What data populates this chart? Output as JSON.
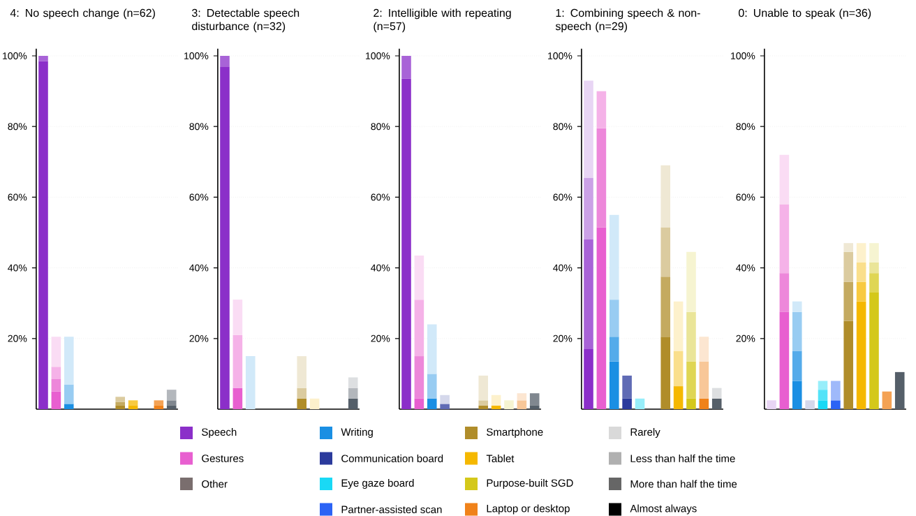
{
  "chart_data": [
    {
      "type": "bar",
      "stacked": true,
      "grid": "y",
      "title": "4: No speech change (n=62)",
      "categories": [
        null,
        null,
        null,
        null,
        null,
        null,
        null,
        null,
        null,
        null,
        null
      ],
      "ylim": [
        0,
        102
      ],
      "yticks": [
        {
          "value": 20,
          "label": "20%"
        },
        {
          "value": 40,
          "label": "40%"
        },
        {
          "value": 60,
          "label": "60%"
        },
        {
          "value": 80,
          "label": "80%"
        },
        {
          "value": 100,
          "label": "100%"
        }
      ],
      "series": [
        {
          "colors": [
            "#8b2fc9",
            "#e85fd0",
            "#1a8fe3",
            "#2b3a9c",
            "#19d9f5",
            "#2b63f5",
            "#b08d2a",
            "#f5b800",
            "#d4c81a",
            "#f0821a",
            "#555f69"
          ],
          "values": [
            98.5,
            5,
            1.5,
            0,
            0,
            0,
            1,
            1,
            0,
            1,
            1
          ]
        },
        {
          "colors": [
            "#a863d7",
            "#ed87da",
            "#54abea",
            "#606bb5",
            "#53e3f8",
            "#608af8",
            "#c4aa60",
            "#f8ca40",
            "#dfd654",
            "#f4a254",
            "#80878f"
          ],
          "values": [
            1.5,
            3.5,
            0,
            0,
            0,
            0,
            1,
            1.5,
            0,
            1.5,
            1.5
          ]
        },
        {
          "colors": [
            "#cba1e6",
            "#f5b2e8",
            "#98ccf2",
            "#9fa6d2",
            "#97eefa",
            "#9fb9fa",
            "#dbcb9f",
            "#fadf8c",
            "#eae598",
            "#f8c798",
            "#b3b7bc"
          ],
          "values": [
            0,
            3.5,
            5.5,
            0,
            0,
            0,
            1.5,
            0,
            0,
            0,
            3
          ]
        },
        {
          "colors": [
            "#e8d5f4",
            "#fadcf4",
            "#d1e9f9",
            "#d5d8eb",
            "#d1f7fd",
            "#d5e0fd",
            "#efe8d4",
            "#fdf1cc",
            "#f6f4d1",
            "#fce6d1",
            "#dddfe1"
          ],
          "values": [
            0,
            8.5,
            13.5,
            0,
            0,
            0,
            0,
            0,
            0,
            0,
            0
          ]
        }
      ]
    },
    {
      "type": "bar",
      "stacked": true,
      "grid": "y",
      "title": "3: Detectable speech disturbance (n=32)",
      "categories": [
        null,
        null,
        null,
        null,
        null,
        null,
        null,
        null,
        null,
        null,
        null
      ],
      "ylim": [
        0,
        102
      ],
      "yticks": [
        {
          "value": 20,
          "label": "20%"
        },
        {
          "value": 40,
          "label": "40%"
        },
        {
          "value": 60,
          "label": "60%"
        },
        {
          "value": 80,
          "label": "80%"
        },
        {
          "value": 100,
          "label": "100%"
        }
      ],
      "series": [
        {
          "colors": [
            "#8b2fc9",
            "#e85fd0",
            "#1a8fe3",
            "#2b3a9c",
            "#19d9f5",
            "#2b63f5",
            "#b08d2a",
            "#f5b800",
            "#d4c81a",
            "#f0821a",
            "#555f69"
          ],
          "values": [
            97,
            6,
            0,
            0,
            0,
            0,
            3,
            0,
            0,
            0,
            3
          ]
        },
        {
          "colors": [
            "#a863d7",
            "#ed87da",
            "#54abea",
            "#606bb5",
            "#53e3f8",
            "#608af8",
            "#c4aa60",
            "#f8ca40",
            "#dfd654",
            "#f4a254",
            "#80878f"
          ],
          "values": [
            3,
            0,
            0,
            0,
            0,
            0,
            0,
            0,
            0,
            0,
            0
          ]
        },
        {
          "colors": [
            "#cba1e6",
            "#f5b2e8",
            "#98ccf2",
            "#9fa6d2",
            "#97eefa",
            "#9fb9fa",
            "#dbcb9f",
            "#fadf8c",
            "#eae598",
            "#f8c798",
            "#b3b7bc"
          ],
          "values": [
            0,
            15,
            0,
            0,
            0,
            0,
            3,
            0,
            0,
            0,
            3
          ]
        },
        {
          "colors": [
            "#e8d5f4",
            "#fadcf4",
            "#d1e9f9",
            "#d5d8eb",
            "#d1f7fd",
            "#d5e0fd",
            "#efe8d4",
            "#fdf1cc",
            "#f6f4d1",
            "#fce6d1",
            "#dddfe1"
          ],
          "values": [
            0,
            10,
            15,
            0,
            0,
            0,
            9,
            3,
            0,
            0,
            3
          ]
        }
      ]
    },
    {
      "type": "bar",
      "stacked": true,
      "grid": "y",
      "title": "2: Intelligible with repeating (n=57)",
      "categories": [
        null,
        null,
        null,
        null,
        null,
        null,
        null,
        null,
        null,
        null,
        null
      ],
      "ylim": [
        0,
        102
      ],
      "yticks": [
        {
          "value": 20,
          "label": "20%"
        },
        {
          "value": 40,
          "label": "40%"
        },
        {
          "value": 60,
          "label": "60%"
        },
        {
          "value": 80,
          "label": "80%"
        },
        {
          "value": 100,
          "label": "100%"
        }
      ],
      "series": [
        {
          "colors": [
            "#8b2fc9",
            "#e85fd0",
            "#1a8fe3",
            "#2b3a9c",
            "#19d9f5",
            "#2b63f5",
            "#b08d2a",
            "#f5b800",
            "#d4c81a",
            "#f0821a",
            "#555f69"
          ],
          "values": [
            93.5,
            3,
            3,
            0,
            0,
            0,
            1,
            1,
            0,
            0,
            1
          ]
        },
        {
          "colors": [
            "#a863d7",
            "#ed87da",
            "#54abea",
            "#606bb5",
            "#53e3f8",
            "#608af8",
            "#c4aa60",
            "#f8ca40",
            "#dfd654",
            "#f4a254",
            "#80878f"
          ],
          "values": [
            6.5,
            12,
            0,
            1.5,
            0,
            0,
            0,
            0,
            0,
            0,
            3.5
          ]
        },
        {
          "colors": [
            "#cba1e6",
            "#f5b2e8",
            "#98ccf2",
            "#9fa6d2",
            "#97eefa",
            "#9fb9fa",
            "#dbcb9f",
            "#fadf8c",
            "#eae598",
            "#f8c798",
            "#b3b7bc"
          ],
          "values": [
            0,
            16,
            7,
            0,
            0,
            0,
            1.5,
            0,
            0,
            2.5,
            0
          ]
        },
        {
          "colors": [
            "#e8d5f4",
            "#fadcf4",
            "#d1e9f9",
            "#d5d8eb",
            "#d1f7fd",
            "#d5e0fd",
            "#efe8d4",
            "#fdf1cc",
            "#f6f4d1",
            "#fce6d1",
            "#dddfe1"
          ],
          "values": [
            0,
            12.5,
            14,
            2.5,
            0,
            0,
            7,
            3,
            2.5,
            2,
            0
          ]
        }
      ]
    },
    {
      "type": "bar",
      "stacked": true,
      "grid": "y",
      "title": "1: Combining speech & non-speech (n=29)",
      "categories": [
        null,
        null,
        null,
        null,
        null,
        null,
        null,
        null,
        null,
        null,
        null
      ],
      "ylim": [
        0,
        102
      ],
      "yticks": [
        {
          "value": 20,
          "label": "20%"
        },
        {
          "value": 40,
          "label": "40%"
        },
        {
          "value": 60,
          "label": "60%"
        },
        {
          "value": 80,
          "label": "80%"
        },
        {
          "value": 100,
          "label": "100%"
        }
      ],
      "series": [
        {
          "colors": [
            "#8b2fc9",
            "#e85fd0",
            "#1a8fe3",
            "#2b3a9c",
            "#19d9f5",
            "#2b63f5",
            "#b08d2a",
            "#f5b800",
            "#d4c81a",
            "#f0821a",
            "#555f69"
          ],
          "values": [
            17,
            51.5,
            13.5,
            3,
            0,
            0,
            20.5,
            6.5,
            3,
            3,
            3
          ]
        },
        {
          "colors": [
            "#a863d7",
            "#ed87da",
            "#54abea",
            "#606bb5",
            "#53e3f8",
            "#608af8",
            "#c4aa60",
            "#f8ca40",
            "#dfd654",
            "#f4a254",
            "#80878f"
          ],
          "values": [
            31,
            28,
            7,
            6.5,
            0,
            0,
            17,
            0,
            10.5,
            0,
            0
          ]
        },
        {
          "colors": [
            "#cba1e6",
            "#f5b2e8",
            "#98ccf2",
            "#9fa6d2",
            "#97eefa",
            "#9fb9fa",
            "#dbcb9f",
            "#fadf8c",
            "#eae598",
            "#f8c798",
            "#b3b7bc"
          ],
          "values": [
            17.5,
            10.5,
            10.5,
            0,
            3,
            0,
            14,
            10,
            14,
            10.5,
            0
          ]
        },
        {
          "colors": [
            "#e8d5f4",
            "#fadcf4",
            "#d1e9f9",
            "#d5d8eb",
            "#d1f7fd",
            "#d5e0fd",
            "#efe8d4",
            "#fdf1cc",
            "#f6f4d1",
            "#fce6d1",
            "#dddfe1"
          ],
          "values": [
            27.5,
            0,
            24,
            0,
            0,
            0,
            17.5,
            14,
            17,
            7,
            3
          ]
        }
      ]
    },
    {
      "type": "bar",
      "stacked": true,
      "grid": "y",
      "title": "0: Unable to speak (n=36)",
      "categories": [
        null,
        null,
        null,
        null,
        null,
        null,
        null,
        null,
        null,
        null,
        null
      ],
      "ylim": [
        0,
        102
      ],
      "yticks": [
        {
          "value": 20,
          "label": "20%"
        },
        {
          "value": 40,
          "label": "40%"
        },
        {
          "value": 60,
          "label": "60%"
        },
        {
          "value": 80,
          "label": "80%"
        },
        {
          "value": 100,
          "label": "100%"
        }
      ],
      "series": [
        {
          "colors": [
            "#8b2fc9",
            "#e85fd0",
            "#1a8fe3",
            "#2b3a9c",
            "#19d9f5",
            "#2b63f5",
            "#b08d2a",
            "#f5b800",
            "#d4c81a",
            "#f0821a",
            "#555f69"
          ],
          "values": [
            0,
            27.5,
            8,
            0,
            2.5,
            2.5,
            25,
            30.5,
            33,
            0,
            10.5
          ]
        },
        {
          "colors": [
            "#a863d7",
            "#ed87da",
            "#54abea",
            "#606bb5",
            "#53e3f8",
            "#608af8",
            "#c4aa60",
            "#f8ca40",
            "#dfd654",
            "#f4a254",
            "#80878f"
          ],
          "values": [
            0,
            11,
            8.5,
            0,
            3,
            0,
            11,
            5.5,
            5.5,
            5,
            0
          ]
        },
        {
          "colors": [
            "#cba1e6",
            "#f5b2e8",
            "#98ccf2",
            "#9fa6d2",
            "#97eefa",
            "#9fb9fa",
            "#dbcb9f",
            "#fadf8c",
            "#eae598",
            "#f8c798",
            "#b3b7bc"
          ],
          "values": [
            0,
            19.5,
            11,
            0,
            2.5,
            5.5,
            8.5,
            5.5,
            3,
            0,
            0
          ]
        },
        {
          "colors": [
            "#e8d5f4",
            "#fadcf4",
            "#d1e9f9",
            "#d5d8eb",
            "#d1f7fd",
            "#d5e0fd",
            "#efe8d4",
            "#fdf1cc",
            "#f6f4d1",
            "#fce6d1",
            "#dddfe1"
          ],
          "values": [
            2.5,
            14,
            3,
            2.5,
            0,
            0,
            2.5,
            5.5,
            5.5,
            0,
            0
          ]
        }
      ]
    },
    {
      "type": "other",
      "categories": [
        "Speech",
        "Gestures",
        "Other",
        "Writing",
        "Communication board",
        "Eye gaze board",
        "Partner-assisted scan",
        "Smartphone",
        "Tablet",
        "Purpose-built SGD",
        "Laptop or desktop",
        "Rarely",
        "Less than half the time",
        "More than half the time",
        "Almost always"
      ],
      "colors": [
        "#8b2fc9",
        "#e85fd0",
        "#7a6e6e",
        "#1a8fe3",
        "#2b3a9c",
        "#19d9f5",
        "#2b63f5",
        "#b08d2a",
        "#f5b800",
        "#d4c81a",
        "#f0821a",
        "#d9d9d9",
        "#b0b0b0",
        "#666666",
        "#000000"
      ]
    }
  ]
}
